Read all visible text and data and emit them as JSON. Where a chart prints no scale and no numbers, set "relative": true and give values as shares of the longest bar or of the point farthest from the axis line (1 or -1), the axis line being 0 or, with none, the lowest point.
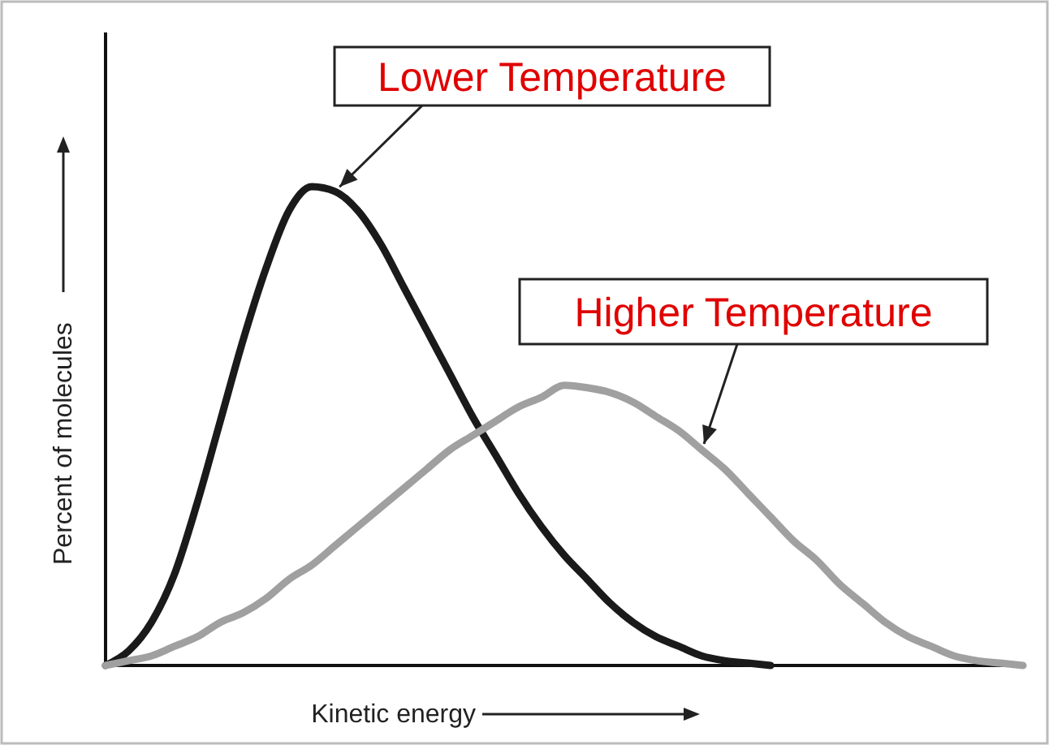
{
  "chart_data": {
    "type": "line",
    "relative": true,
    "xlabel": "Kinetic energy",
    "ylabel": "Percent of molecules",
    "marker": "none",
    "line_style": "solid",
    "categories": [
      null,
      null,
      null,
      null,
      null,
      null,
      null,
      null,
      null,
      null,
      null,
      null,
      null,
      null,
      null,
      null,
      null,
      null,
      null,
      null,
      null,
      null,
      null,
      null,
      null,
      null,
      null,
      null,
      null,
      null,
      null,
      null,
      null,
      null,
      null,
      null,
      null,
      null,
      null,
      null,
      null
    ],
    "series": [
      {
        "name": "Lower Temperature",
        "color": "#1a1a1a",
        "values": [
          0,
          0.03,
          0.09,
          0.19,
          0.34,
          0.51,
          0.68,
          0.83,
          0.95,
          1,
          0.99,
          0.95,
          0.88,
          0.79,
          0.7,
          0.61,
          0.52,
          0.44,
          0.36,
          0.29,
          0.23,
          0.18,
          0.13,
          0.09,
          0.06,
          0.04,
          0.02,
          0.01,
          0.005,
          0,
          null,
          null,
          null,
          null,
          null,
          null,
          null,
          null,
          null,
          null,
          null
        ]
      },
      {
        "name": "Higher Temperature",
        "color": "#a0a0a0",
        "values": [
          0,
          0.01,
          0.02,
          0.04,
          0.06,
          0.09,
          0.11,
          0.14,
          0.18,
          0.21,
          0.25,
          0.29,
          0.33,
          0.37,
          0.41,
          0.45,
          0.48,
          0.51,
          0.54,
          0.56,
          0.585,
          0.58,
          0.57,
          0.55,
          0.52,
          0.49,
          0.45,
          0.41,
          0.36,
          0.31,
          0.26,
          0.22,
          0.17,
          0.13,
          0.09,
          0.06,
          0.04,
          0.02,
          0.01,
          0.005,
          0
        ]
      }
    ]
  }
}
